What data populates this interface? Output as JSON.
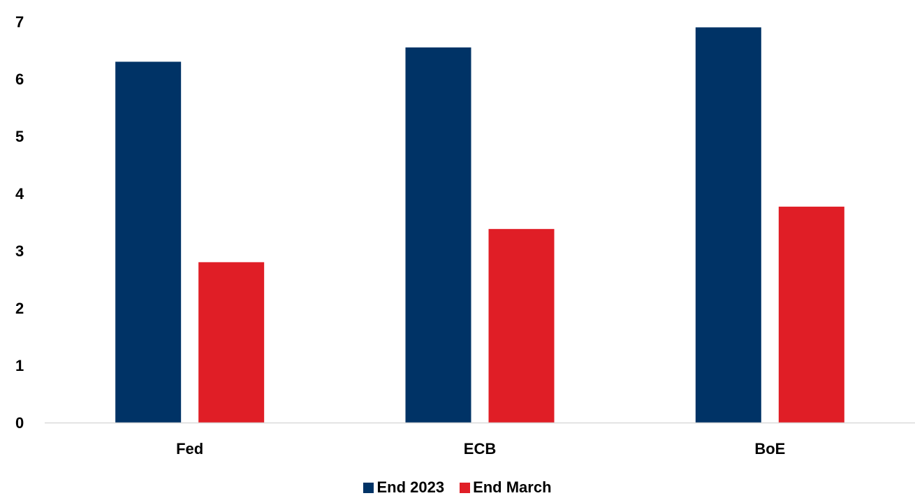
{
  "chart_data": {
    "type": "bar",
    "title": "",
    "xlabel": "",
    "ylabel": "",
    "categories": [
      "Fed",
      "ECB",
      "BoE"
    ],
    "series": [
      {
        "name": "End 2023",
        "color": "#003366",
        "values": [
          6.3,
          6.55,
          6.9
        ]
      },
      {
        "name": "End March",
        "color": "#e01e26",
        "values": [
          2.8,
          3.38,
          3.77
        ]
      }
    ],
    "ylim": [
      0,
      7
    ],
    "yticks": [
      "0",
      "1",
      "2",
      "3",
      "4",
      "5",
      "6",
      "7"
    ],
    "grid": false,
    "legend_position": "bottom-center"
  }
}
